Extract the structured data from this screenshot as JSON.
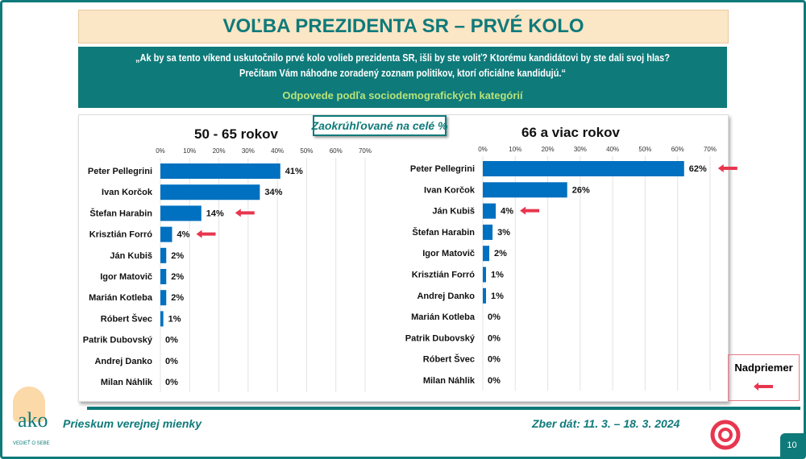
{
  "title": "VOĽBA PREZIDENTA SR – PRVÉ KOLO",
  "question_line1": "„Ak by sa tento víkend uskutočnilo prvé kolo volieb prezidenta SR, išli by ste voliť? Ktorému kandidátovi by ste dali svoj hlas?",
  "question_line2": "Prečítam Vám náhodne zoradený zoznam politikov, ktorí oficiálne kandidujú.“",
  "subtitle": "Odpovede podľa sociodemografických kategórií",
  "note": "Zaokrúhľované na celé %",
  "legend": {
    "label": "Nadpriemer",
    "marker_color": "#e8364f"
  },
  "footer": {
    "left": "Prieskum verejnej mienky",
    "right": "Zber dát: 11. 3. – 18. 3. 2024",
    "page": "10",
    "logo_text": "ako",
    "logo_tagline": "VEDIEŤ O SEBE"
  },
  "colors": {
    "teal": "#0f7a7a",
    "bar": "#0070c0",
    "arrow": "#e8364f"
  },
  "chart_data": [
    {
      "type": "bar",
      "orientation": "horizontal",
      "title": "50 - 65 rokov",
      "xlim": [
        0,
        70
      ],
      "ticks": [
        "0%",
        "10%",
        "20%",
        "30%",
        "40%",
        "50%",
        "60%",
        "70%"
      ],
      "grid": true,
      "categories": [
        "Peter Pellegrini",
        "Ivan Korčok",
        "Štefan Harabin",
        "Krisztián Forró",
        "Ján Kubiš",
        "Igor Matovič",
        "Marián Kotleba",
        "Róbert Švec",
        "Patrik Dubovský",
        "Andrej Danko",
        "Milan Náhlik"
      ],
      "values": [
        41,
        34,
        14,
        4,
        2,
        2,
        2,
        1,
        0,
        0,
        0
      ],
      "above_average": [
        false,
        false,
        true,
        true,
        false,
        false,
        false,
        false,
        false,
        false,
        false
      ]
    },
    {
      "type": "bar",
      "orientation": "horizontal",
      "title": "66 a viac rokov",
      "xlim": [
        0,
        70
      ],
      "ticks": [
        "0%",
        "10%",
        "20%",
        "30%",
        "40%",
        "50%",
        "60%",
        "70%"
      ],
      "grid": true,
      "categories": [
        "Peter Pellegrini",
        "Ivan Korčok",
        "Ján Kubiš",
        "Štefan Harabin",
        "Igor Matovič",
        "Krisztián Forró",
        "Andrej Danko",
        "Marián Kotleba",
        "Patrik Dubovský",
        "Róbert Švec",
        "Milan Náhlik"
      ],
      "values": [
        62,
        26,
        4,
        3,
        2,
        1,
        1,
        0,
        0,
        0,
        0
      ],
      "above_average": [
        true,
        false,
        true,
        false,
        false,
        false,
        false,
        false,
        false,
        false,
        false
      ]
    }
  ]
}
